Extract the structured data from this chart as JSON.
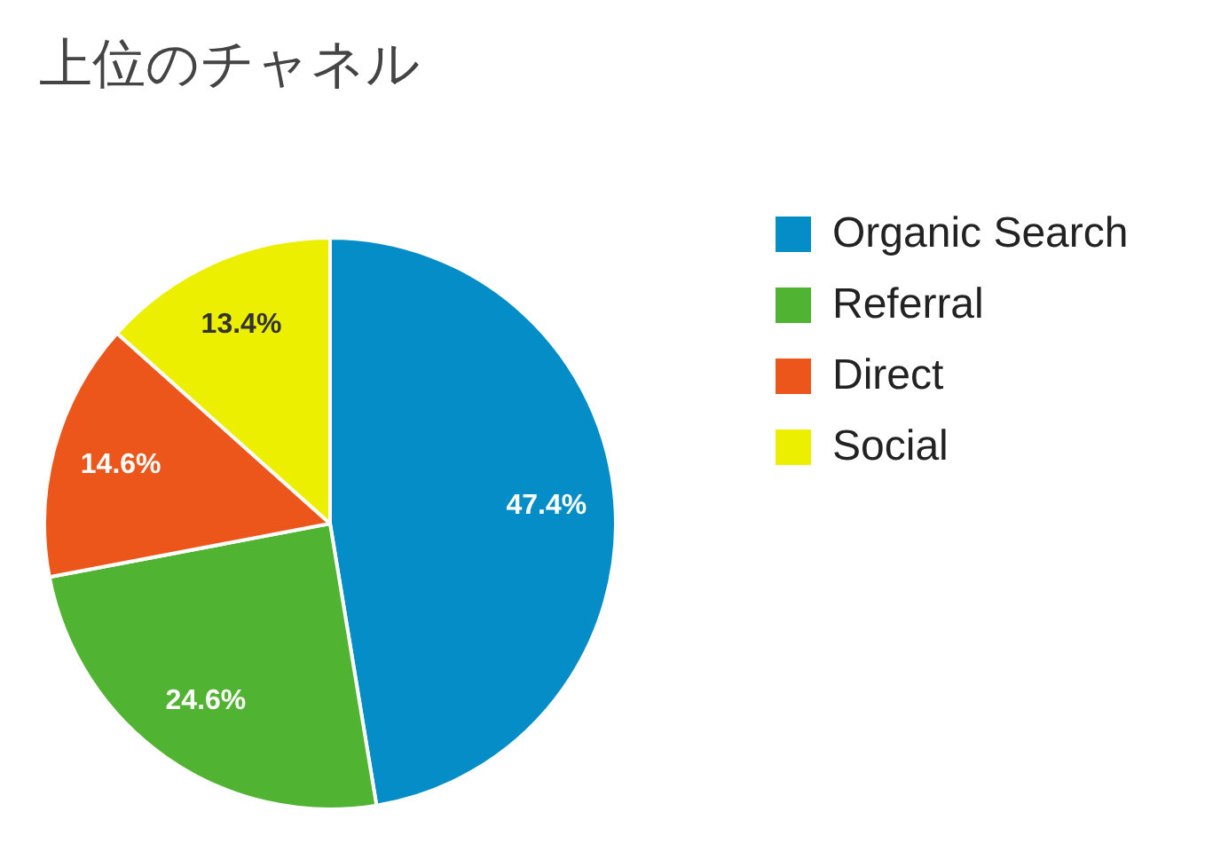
{
  "chart_data": {
    "type": "pie",
    "title": "上位のチャネル",
    "categories": [
      "Organic Search",
      "Referral",
      "Direct",
      "Social"
    ],
    "values": [
      47.4,
      24.6,
      14.6,
      13.4
    ],
    "colors": [
      "#058dc7",
      "#50b432",
      "#ed561b",
      "#edef00"
    ],
    "value_labels": [
      "47.4%",
      "24.6%",
      "14.6%",
      "13.4%"
    ],
    "legend": "right"
  }
}
